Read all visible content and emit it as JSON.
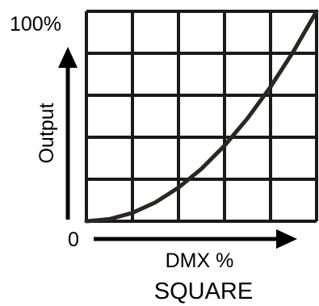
{
  "chart_data": {
    "type": "line",
    "title": "SQUARE",
    "xlabel": "DMX %",
    "ylabel": "Output",
    "xlim": [
      0,
      100
    ],
    "ylim": [
      0,
      100
    ],
    "x_tick_labels": [
      "0"
    ],
    "y_tick_labels": [
      "100%"
    ],
    "grid": true,
    "grid_divisions": 5,
    "series": [
      {
        "x": [
          0,
          10,
          20,
          30,
          40,
          50,
          60,
          70,
          80,
          90,
          100
        ],
        "y": [
          0,
          1,
          4,
          9,
          16,
          25,
          36,
          49,
          64,
          81,
          100
        ]
      }
    ],
    "colors": {
      "grid": "#1a1a1a",
      "curve": "#2b2523",
      "axis_arrow": "#000000"
    }
  }
}
